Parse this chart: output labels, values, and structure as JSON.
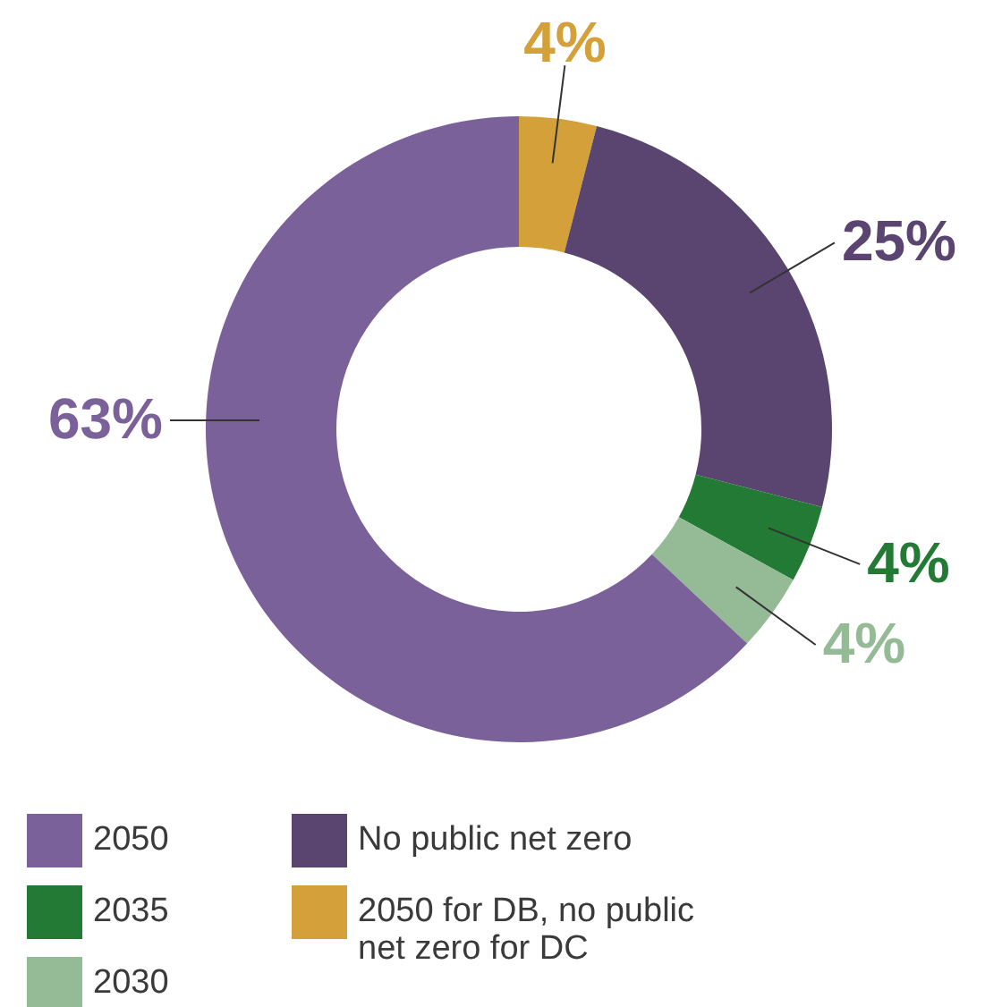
{
  "chart_data": {
    "type": "donut",
    "categories": [
      "2050 for DB, no public net zero for DC",
      "No public net zero",
      "2035",
      "2030",
      "2050"
    ],
    "values": [
      4,
      25,
      4,
      4,
      63
    ],
    "value_labels": [
      "4%",
      "25%",
      "4%",
      "4%",
      "63%"
    ],
    "colors": [
      "#d3a03a",
      "#5a4570",
      "#227a35",
      "#94bb96",
      "#7b6199"
    ],
    "legend": "bottom"
  }
}
